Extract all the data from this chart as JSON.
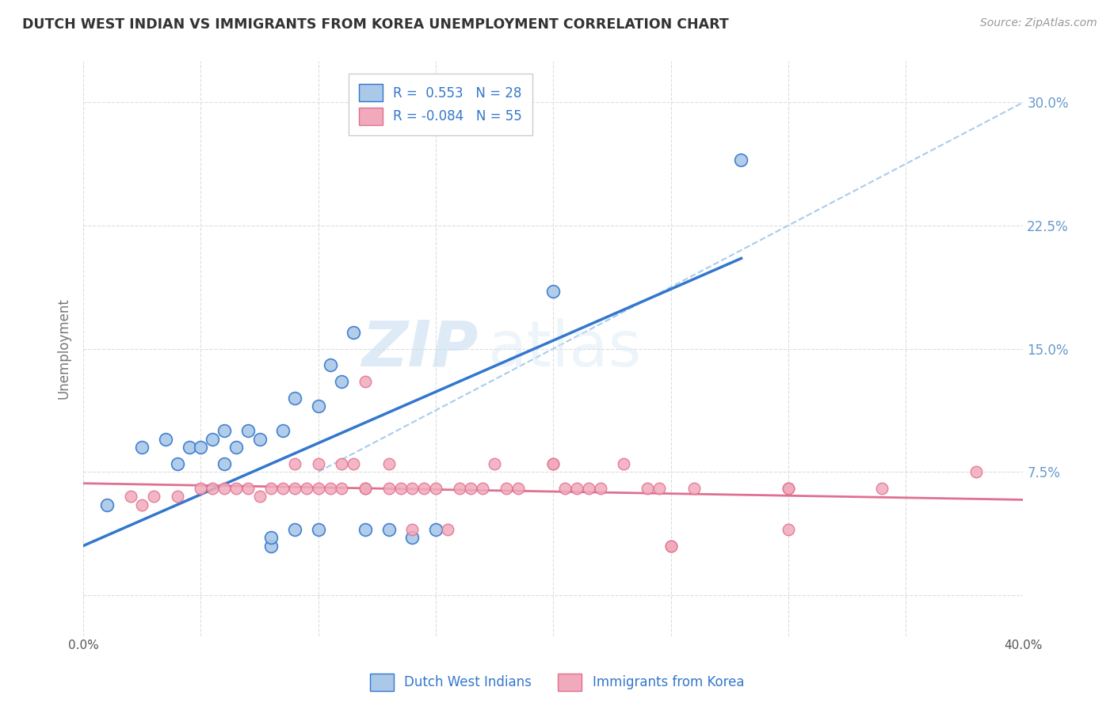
{
  "title": "DUTCH WEST INDIAN VS IMMIGRANTS FROM KOREA UNEMPLOYMENT CORRELATION CHART",
  "source": "Source: ZipAtlas.com",
  "ylabel": "Unemployment",
  "xlim": [
    0.0,
    0.4
  ],
  "ylim": [
    -0.025,
    0.325
  ],
  "xticks": [
    0.0,
    0.05,
    0.1,
    0.15,
    0.2,
    0.25,
    0.3,
    0.35,
    0.4
  ],
  "yticks": [
    0.0,
    0.075,
    0.15,
    0.225,
    0.3
  ],
  "ytick_labels_right": [
    "",
    "7.5%",
    "15.0%",
    "22.5%",
    "30.0%"
  ],
  "legend_r1": "R =  0.553",
  "legend_n1": "N = 28",
  "legend_r2": "R = -0.084",
  "legend_n2": "N = 55",
  "blue_color": "#aac8e8",
  "pink_color": "#f0aabb",
  "blue_line_color": "#3377cc",
  "pink_line_color": "#e07090",
  "dashed_line_color": "#aaccee",
  "watermark_zip": "ZIP",
  "watermark_atlas": "atlas",
  "blue_scatter_x": [
    0.01,
    0.025,
    0.035,
    0.04,
    0.045,
    0.05,
    0.055,
    0.06,
    0.06,
    0.065,
    0.07,
    0.075,
    0.08,
    0.08,
    0.085,
    0.09,
    0.09,
    0.1,
    0.1,
    0.105,
    0.11,
    0.115,
    0.12,
    0.13,
    0.14,
    0.15,
    0.2,
    0.28
  ],
  "blue_scatter_y": [
    0.055,
    0.09,
    0.095,
    0.08,
    0.09,
    0.09,
    0.095,
    0.08,
    0.1,
    0.09,
    0.1,
    0.095,
    0.03,
    0.035,
    0.1,
    0.12,
    0.04,
    0.115,
    0.04,
    0.14,
    0.13,
    0.16,
    0.04,
    0.04,
    0.035,
    0.04,
    0.185,
    0.265
  ],
  "pink_scatter_x": [
    0.02,
    0.025,
    0.03,
    0.04,
    0.05,
    0.055,
    0.06,
    0.065,
    0.07,
    0.075,
    0.08,
    0.085,
    0.09,
    0.09,
    0.095,
    0.1,
    0.1,
    0.105,
    0.11,
    0.11,
    0.115,
    0.12,
    0.12,
    0.13,
    0.13,
    0.135,
    0.14,
    0.14,
    0.145,
    0.15,
    0.155,
    0.16,
    0.165,
    0.17,
    0.175,
    0.18,
    0.185,
    0.2,
    0.205,
    0.21,
    0.215,
    0.22,
    0.23,
    0.24,
    0.245,
    0.25,
    0.26,
    0.3,
    0.3,
    0.34,
    0.38,
    0.12,
    0.2,
    0.25,
    0.3
  ],
  "pink_scatter_y": [
    0.06,
    0.055,
    0.06,
    0.06,
    0.065,
    0.065,
    0.065,
    0.065,
    0.065,
    0.06,
    0.065,
    0.065,
    0.08,
    0.065,
    0.065,
    0.08,
    0.065,
    0.065,
    0.08,
    0.065,
    0.08,
    0.065,
    0.065,
    0.08,
    0.065,
    0.065,
    0.065,
    0.04,
    0.065,
    0.065,
    0.04,
    0.065,
    0.065,
    0.065,
    0.08,
    0.065,
    0.065,
    0.08,
    0.065,
    0.065,
    0.065,
    0.065,
    0.08,
    0.065,
    0.065,
    0.03,
    0.065,
    0.065,
    0.065,
    0.065,
    0.075,
    0.13,
    0.08,
    0.03,
    0.04
  ],
  "blue_trend_x": [
    0.0,
    0.28
  ],
  "blue_trend_y": [
    0.03,
    0.205
  ],
  "pink_trend_x": [
    0.0,
    0.4
  ],
  "pink_trend_y": [
    0.068,
    0.058
  ],
  "dashed_trend_x": [
    0.1,
    0.4
  ],
  "dashed_trend_y": [
    0.075,
    0.3
  ],
  "background_color": "#ffffff",
  "grid_color": "#dddddd",
  "tick_color": "#6699cc"
}
